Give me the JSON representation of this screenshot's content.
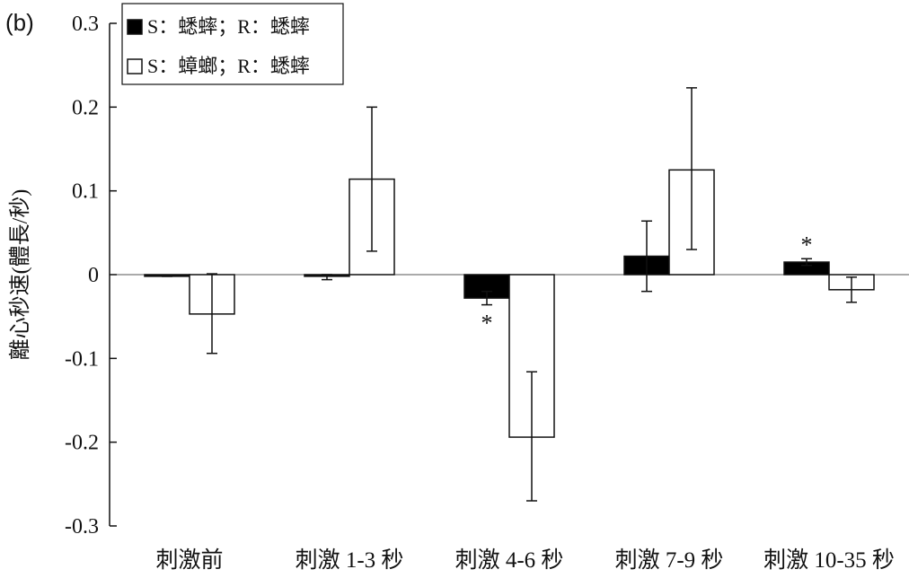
{
  "panel_label": "(b)",
  "chart_data": {
    "type": "bar",
    "ylabel": "離心秒速(體長/秒)",
    "ylim": [
      -0.3,
      0.3
    ],
    "yticks": [
      0.3,
      0.2,
      0.1,
      0,
      -0.1,
      -0.2,
      -0.3
    ],
    "ytick_labels": [
      "0.3",
      "0.2",
      "0.1",
      "0",
      "-0.1",
      "-0.2",
      "-0.3"
    ],
    "grid": false,
    "legend_position": "top-left",
    "categories": [
      "刺激前",
      "刺激 1-3 秒",
      "刺激 4-6 秒",
      "刺激 7-9 秒",
      "刺激 10-35 秒"
    ],
    "series": [
      {
        "name": "S：蟋蟀；R：蟋蟀",
        "fill": "#000000",
        "values": [
          -0.002,
          -0.002,
          -0.028,
          0.022,
          0.015
        ],
        "err_low": [
          -0.002,
          -0.006,
          -0.036,
          -0.02,
          0.011
        ],
        "err_high": [
          -0.002,
          0.0,
          -0.02,
          0.064,
          0.019
        ]
      },
      {
        "name": "S：蟑螂；R：蟋蟀",
        "fill": "#ffffff",
        "values": [
          -0.047,
          0.114,
          -0.194,
          0.125,
          -0.018
        ],
        "err_low": [
          -0.094,
          0.028,
          -0.27,
          0.03,
          -0.033
        ],
        "err_high": [
          0.001,
          0.2,
          -0.116,
          0.223,
          -0.003
        ]
      }
    ],
    "annotations": [
      {
        "text": "*",
        "category_index": 2,
        "series_index": 0,
        "value": -0.056
      },
      {
        "text": "*",
        "category_index": 4,
        "series_index": 0,
        "value": 0.037
      }
    ]
  }
}
